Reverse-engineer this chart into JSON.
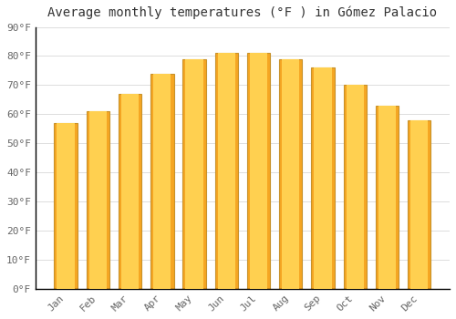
{
  "title": "Average monthly temperatures (°F ) in Gómez Palacio",
  "months": [
    "Jan",
    "Feb",
    "Mar",
    "Apr",
    "May",
    "Jun",
    "Jul",
    "Aug",
    "Sep",
    "Oct",
    "Nov",
    "Dec"
  ],
  "values": [
    57,
    61,
    67,
    74,
    79,
    81,
    81,
    79,
    76,
    70,
    63,
    58
  ],
  "bar_color_outer": "#F5A623",
  "bar_color_inner": "#FFD050",
  "bar_color_edge": "#C8922A",
  "background_color": "#FFFFFF",
  "grid_color": "#DDDDDD",
  "ylim": [
    0,
    90
  ],
  "yticks": [
    0,
    10,
    20,
    30,
    40,
    50,
    60,
    70,
    80,
    90
  ],
  "ytick_labels": [
    "0°F",
    "10°F",
    "20°F",
    "30°F",
    "40°F",
    "50°F",
    "60°F",
    "70°F",
    "80°F",
    "90°F"
  ],
  "title_fontsize": 10,
  "tick_fontsize": 8,
  "font_color": "#666666"
}
